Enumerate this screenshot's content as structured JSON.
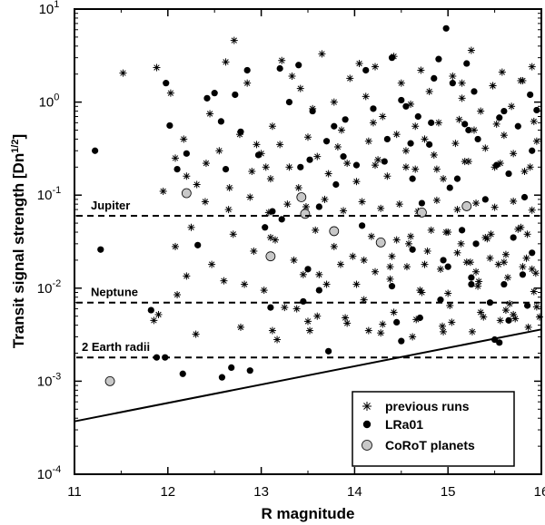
{
  "chart_data": {
    "type": "scatter",
    "title": "",
    "xlabel": "R magnitude",
    "ylabel": "Transit signal strength [Dn^1/2]",
    "ylabel_main": "Transit signal strength [Dn",
    "ylabel_sup": "1/2",
    "ylabel_end": "]",
    "xlim": [
      11,
      16
    ],
    "ylim": [
      0.0001,
      10
    ],
    "yscale": "log",
    "x_ticks": [
      "11",
      "12",
      "13",
      "14",
      "15",
      "16"
    ],
    "y_tick_exponents": [
      "-4",
      "-3",
      "-2",
      "-1",
      "0",
      "1"
    ],
    "y_tick_base": "10",
    "grid": false,
    "legend_position": "bottom-right",
    "reference_lines": [
      {
        "label": "Jupiter",
        "y": 0.06
      },
      {
        "label": "Neptune",
        "y": 0.007
      },
      {
        "label": "2 Earth radii",
        "y": 0.0018
      }
    ],
    "detection_limit": {
      "x": [
        11,
        16
      ],
      "y": [
        0.00037,
        0.0036
      ]
    },
    "colors": {
      "previous_runs": "#000000",
      "lra01": "#000000",
      "corot_planets": "#c8c8c8",
      "lines": "#000000"
    },
    "series": [
      {
        "name": "previous runs",
        "marker": "asterisk",
        "x": [
          11.52,
          11.88,
          12.03,
          12.17,
          12.45,
          12.62,
          12.71,
          12.85,
          12.95,
          13.05,
          13.12,
          13.22,
          13.33,
          13.42,
          13.55,
          13.65,
          13.78,
          13.86,
          13.95,
          14.05,
          14.12,
          14.22,
          14.3,
          14.42,
          14.5,
          14.6,
          14.71,
          14.8,
          14.9,
          15.05,
          15.15,
          15.25,
          15.35,
          15.48,
          15.58,
          15.68,
          15.78,
          15.9,
          11.95,
          12.08,
          12.2,
          12.31,
          12.41,
          12.55,
          12.66,
          12.77,
          12.9,
          13.0,
          13.1,
          13.2,
          13.3,
          13.4,
          13.5,
          13.6,
          13.72,
          13.82,
          13.92,
          14.02,
          14.15,
          14.25,
          14.35,
          14.45,
          14.55,
          14.65,
          14.75,
          14.85,
          14.95,
          15.08,
          15.18,
          15.28,
          15.4,
          15.5,
          15.6,
          15.7,
          15.82,
          15.95,
          12.4,
          12.65,
          12.88,
          13.08,
          13.28,
          13.48,
          13.68,
          13.88,
          14.08,
          14.28,
          14.48,
          14.68,
          14.88,
          15.1,
          15.3,
          15.5,
          15.7,
          15.9,
          12.08,
          12.25,
          12.47,
          12.7,
          12.92,
          13.15,
          13.35,
          13.58,
          13.78,
          13.98,
          14.18,
          14.38,
          14.58,
          14.78,
          14.98,
          15.2,
          15.42,
          15.62,
          15.85,
          11.85,
          12.1,
          12.6,
          13.03,
          13.38,
          13.7,
          14.1,
          14.42,
          14.72,
          15.02,
          15.32,
          15.62,
          15.92,
          12.3,
          12.78,
          13.17,
          13.52,
          13.92,
          14.28,
          14.62,
          14.94,
          15.26,
          15.56,
          15.86,
          11.9,
          12.2,
          13.25,
          13.62,
          14.02,
          14.38,
          14.7,
          15.0,
          15.33,
          15.64,
          15.94,
          13.1,
          13.45,
          13.85,
          14.22,
          14.56,
          14.92,
          15.24,
          15.54,
          15.84,
          13.12,
          13.5,
          13.9,
          14.3,
          14.66,
          15.04,
          15.38,
          15.72,
          14.45,
          14.82,
          15.14,
          15.46,
          15.78,
          14.6,
          15.0,
          15.4,
          15.75,
          15.3,
          15.6,
          15.9,
          14.22,
          14.55,
          14.88,
          15.22,
          15.56,
          15.88,
          14.1,
          14.4,
          14.75,
          15.1,
          15.45,
          15.8,
          14.2,
          14.65,
          15.12,
          15.52,
          15.92,
          15.15,
          15.48,
          15.8,
          12.82,
          13.6,
          14.15,
          14.95,
          15.66,
          15.98,
          15.35,
          15.7,
          15.95
        ],
        "y": [
          2.05,
          2.35,
          1.25,
          0.4,
          0.75,
          2.7,
          4.6,
          1.6,
          0.35,
          0.2,
          0.55,
          2.8,
          1.9,
          1.4,
          0.85,
          3.3,
          1.0,
          0.5,
          1.8,
          2.6,
          1.15,
          2.4,
          0.7,
          3.1,
          1.6,
          0.95,
          2.2,
          1.3,
          0.6,
          1.9,
          1.1,
          3.6,
          0.8,
          1.5,
          2.1,
          0.9,
          1.7,
          2.4,
          0.11,
          0.25,
          0.16,
          0.13,
          0.22,
          0.3,
          0.12,
          0.45,
          0.18,
          0.28,
          0.15,
          0.35,
          0.2,
          0.12,
          0.42,
          0.26,
          0.17,
          0.33,
          0.22,
          0.14,
          0.38,
          0.24,
          0.16,
          0.45,
          0.3,
          0.19,
          0.4,
          0.27,
          0.15,
          0.36,
          0.23,
          0.5,
          0.32,
          0.2,
          0.44,
          0.28,
          0.18,
          0.38,
          0.085,
          0.07,
          0.095,
          0.065,
          0.08,
          0.075,
          0.09,
          0.068,
          0.085,
          0.072,
          0.08,
          0.067,
          0.088,
          0.07,
          0.082,
          0.074,
          0.086,
          0.069,
          0.028,
          0.045,
          0.018,
          0.038,
          0.025,
          0.033,
          0.02,
          0.042,
          0.028,
          0.022,
          0.036,
          0.017,
          0.03,
          0.025,
          0.04,
          0.019,
          0.034,
          0.023,
          0.038,
          0.0045,
          0.0085,
          0.012,
          0.0095,
          0.006,
          0.011,
          0.0075,
          0.0055,
          0.009,
          0.0065,
          0.0105,
          0.0058,
          0.0092,
          0.0032,
          0.0038,
          0.0028,
          0.0035,
          0.0042,
          0.0033,
          0.003,
          0.0039,
          0.0034,
          0.0045,
          0.0038,
          0.0052,
          0.0135,
          0.0062,
          0.014,
          0.011,
          0.0125,
          0.0095,
          0.0088,
          0.0118,
          0.013,
          0.0145,
          0.035,
          0.014,
          0.018,
          0.015,
          0.017,
          0.016,
          0.019,
          0.018,
          0.021,
          0.0035,
          0.0044,
          0.0048,
          0.0041,
          0.0046,
          0.0043,
          0.0049,
          0.0047,
          0.033,
          0.042,
          0.03,
          0.038,
          0.045,
          0.036,
          0.04,
          0.035,
          0.043,
          0.015,
          0.019,
          0.016,
          0.21,
          0.2,
          0.19,
          0.23,
          0.22,
          0.2,
          0.02,
          0.022,
          0.018,
          0.024,
          0.021,
          0.017,
          0.6,
          0.55,
          0.65,
          0.58,
          0.62,
          1.6,
          1.5,
          1.7,
          0.011,
          0.005,
          0.0035,
          0.0034,
          0.0068,
          0.0049,
          0.0055,
          0.0052,
          0.0063
        ]
      },
      {
        "name": "LRa01",
        "marker": "filled-circle",
        "x": [
          11.22,
          11.28,
          11.82,
          11.88,
          11.97,
          11.98,
          12.02,
          12.1,
          12.2,
          12.32,
          12.42,
          12.5,
          12.57,
          12.62,
          12.72,
          12.78,
          12.85,
          12.97,
          13.04,
          13.12,
          13.2,
          13.22,
          13.3,
          13.4,
          13.42,
          13.5,
          13.55,
          13.62,
          13.7,
          13.72,
          13.78,
          13.88,
          13.9,
          14.02,
          14.12,
          14.2,
          14.32,
          14.4,
          14.45,
          14.5,
          14.55,
          14.6,
          14.62,
          14.68,
          14.72,
          14.8,
          14.82,
          14.9,
          14.95,
          14.98,
          15.02,
          15.05,
          15.1,
          15.15,
          15.18,
          15.25,
          15.28,
          15.32,
          15.4,
          15.45,
          15.5,
          15.55,
          15.6,
          15.65,
          15.7,
          15.75,
          15.8,
          15.85,
          15.9,
          15.95,
          12.16,
          12.58,
          12.68,
          13.52,
          13.8,
          14.08,
          14.35,
          14.62,
          14.92,
          15.22,
          15.52,
          15.82,
          14.4,
          14.7,
          15.0,
          15.3,
          15.6,
          15.9,
          14.5,
          14.85,
          15.2,
          15.55,
          15.88,
          13.1,
          13.62,
          12.88,
          13.45,
          15.25,
          15.65
        ],
        "y": [
          0.3,
          0.026,
          0.0058,
          0.0018,
          0.0018,
          1.6,
          0.56,
          0.19,
          0.28,
          0.029,
          1.1,
          1.25,
          0.62,
          0.19,
          1.2,
          0.48,
          2.2,
          0.27,
          0.045,
          0.067,
          2.3,
          0.055,
          1.0,
          2.5,
          0.2,
          0.016,
          0.8,
          0.075,
          0.38,
          0.0021,
          0.55,
          0.26,
          0.65,
          0.21,
          2.2,
          0.85,
          0.23,
          3.0,
          0.0043,
          0.0027,
          0.9,
          0.36,
          0.15,
          0.7,
          0.082,
          0.35,
          0.6,
          2.9,
          0.02,
          6.2,
          0.12,
          1.6,
          0.15,
          0.042,
          0.58,
          0.013,
          1.3,
          0.4,
          0.09,
          0.007,
          0.0028,
          0.0026,
          0.8,
          0.17,
          0.035,
          0.55,
          0.014,
          0.0065,
          0.3,
          0.82,
          0.0012,
          0.0011,
          0.0014,
          0.24,
          0.13,
          0.047,
          0.4,
          0.026,
          0.0075,
          0.5,
          0.21,
          0.095,
          0.0105,
          0.0048,
          0.017,
          0.03,
          0.011,
          0.024,
          1.05,
          1.8,
          2.6,
          0.68,
          1.2,
          0.0062,
          0.0095,
          0.0013,
          0.0072,
          0.011,
          0.0045
        ]
      },
      {
        "name": "CoRoT planets",
        "marker": "open-circle",
        "x": [
          11.38,
          12.2,
          13.1,
          13.43,
          13.47,
          13.78,
          14.28,
          14.72,
          15.2
        ],
        "y": [
          0.001,
          0.105,
          0.022,
          0.095,
          0.063,
          0.041,
          0.031,
          0.065,
          0.076
        ]
      }
    ]
  }
}
